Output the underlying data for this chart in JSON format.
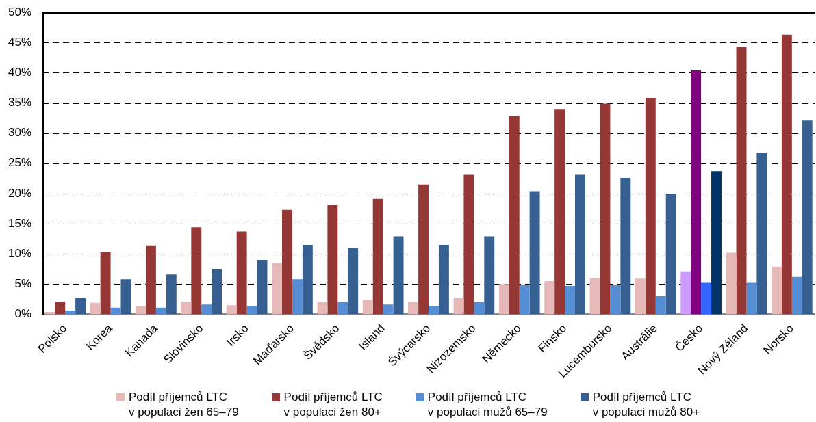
{
  "chart_data": {
    "type": "bar",
    "categories": [
      "Polsko",
      "Korea",
      "Kanada",
      "Slovinsko",
      "Irsko",
      "Maďarsko",
      "Švédsko",
      "Island",
      "Švýcarsko",
      "Nizozemsko",
      "Německo",
      "Finsko",
      "Lucembursko",
      "Austrálie",
      "Česko",
      "Nový Zéland",
      "Norsko"
    ],
    "series": [
      {
        "name": "Podíl příjemců LTC\nv populaci žen 65–79",
        "color": "#e6b9b8",
        "colors": [
          "#e6b9b8",
          "#e6b9b8",
          "#e6b9b8",
          "#e6b9b8",
          "#e6b9b8",
          "#e6b9b8",
          "#e6b9b8",
          "#e6b9b8",
          "#e6b9b8",
          "#e6b9b8",
          "#e6b9b8",
          "#e6b9b8",
          "#e6b9b8",
          "#e6b9b8",
          "#cc99ff",
          "#e6b9b8",
          "#e6b9b8"
        ],
        "values": [
          0.4,
          1.9,
          1.3,
          2.1,
          1.5,
          8.5,
          2.0,
          2.4,
          2.0,
          2.7,
          5.0,
          5.5,
          6.0,
          5.9,
          7.1,
          10.2,
          7.9
        ]
      },
      {
        "name": "Podíl příjemců LTC\nv populaci žen 80+",
        "color": "#953735",
        "colors": [
          "#953735",
          "#953735",
          "#953735",
          "#953735",
          "#953735",
          "#953735",
          "#953735",
          "#953735",
          "#953735",
          "#953735",
          "#953735",
          "#953735",
          "#953735",
          "#953735",
          "#800080",
          "#953735",
          "#953735"
        ],
        "values": [
          2.1,
          10.3,
          11.4,
          14.4,
          13.7,
          17.3,
          18.1,
          19.1,
          21.5,
          23.1,
          32.9,
          33.9,
          34.9,
          35.8,
          40.4,
          44.3,
          46.3
        ]
      },
      {
        "name": "Podíl příjemců LTC\nv populaci mužů 65–79",
        "color": "#558ed5",
        "colors": [
          "#558ed5",
          "#558ed5",
          "#558ed5",
          "#558ed5",
          "#558ed5",
          "#558ed5",
          "#558ed5",
          "#558ed5",
          "#558ed5",
          "#558ed5",
          "#558ed5",
          "#558ed5",
          "#558ed5",
          "#558ed5",
          "#3366ff",
          "#558ed5",
          "#558ed5"
        ],
        "values": [
          0.6,
          1.1,
          1.1,
          1.6,
          1.3,
          5.8,
          2.0,
          1.6,
          1.3,
          2.0,
          4.8,
          4.7,
          4.8,
          3.0,
          5.2,
          5.2,
          6.2
        ]
      },
      {
        "name": "Podíl příjemců LTC\nv populaci mužů 80+",
        "color": "#376092",
        "colors": [
          "#376092",
          "#376092",
          "#376092",
          "#376092",
          "#376092",
          "#376092",
          "#376092",
          "#376092",
          "#376092",
          "#376092",
          "#376092",
          "#376092",
          "#376092",
          "#376092",
          "#003366",
          "#376092",
          "#376092"
        ],
        "values": [
          2.7,
          5.8,
          6.6,
          7.4,
          9.0,
          11.5,
          11.0,
          12.9,
          11.5,
          12.9,
          20.4,
          23.1,
          22.6,
          20.0,
          23.7,
          26.8,
          32.1
        ]
      }
    ],
    "ylim": [
      0,
      50
    ],
    "yticks": [
      {
        "value": 0,
        "label": "0%"
      },
      {
        "value": 5,
        "label": "5%"
      },
      {
        "value": 10,
        "label": "10%"
      },
      {
        "value": 15,
        "label": "15%"
      },
      {
        "value": 20,
        "label": "20%"
      },
      {
        "value": 25,
        "label": "25%"
      },
      {
        "value": 30,
        "label": "30%"
      },
      {
        "value": 35,
        "label": "35%"
      },
      {
        "value": 40,
        "label": "40%"
      },
      {
        "value": 45,
        "label": "45%"
      },
      {
        "value": 50,
        "label": "50%"
      }
    ],
    "grid": "y",
    "legend": "bottom"
  }
}
